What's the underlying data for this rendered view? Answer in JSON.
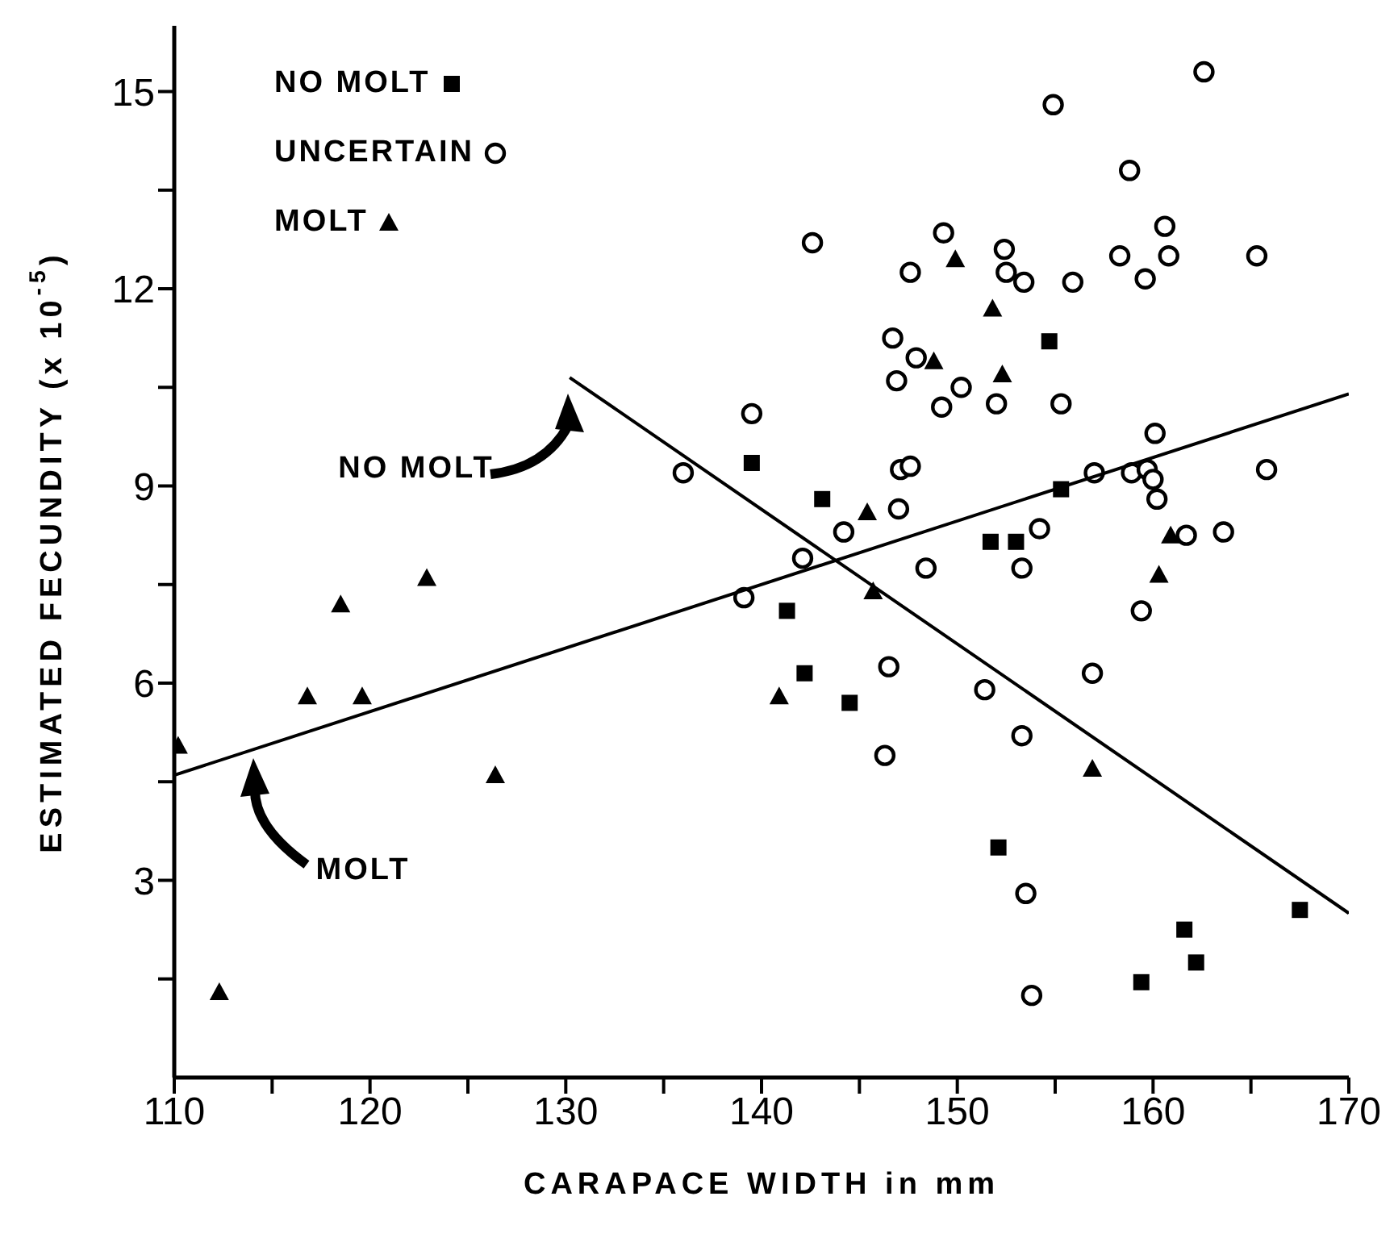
{
  "chart_data": {
    "type": "scatter",
    "xlabel": "CARAPACE WIDTH in mm",
    "ylabel": "ESTIMATED FECUNDITY (x 10$^{-5}$)",
    "xlim": [
      110,
      170
    ],
    "xticks": [
      110,
      {
        "value": 115,
        "label": null
      },
      120,
      {
        "value": 125,
        "label": null
      },
      130,
      {
        "value": 135,
        "label": null
      },
      140,
      {
        "value": 145,
        "label": null
      },
      150,
      {
        "value": 155,
        "label": null
      },
      160,
      {
        "value": 165,
        "label": null
      },
      170
    ],
    "ylim": [
      0,
      16
    ],
    "yticks": [
      {
        "value": 1.5,
        "label": null
      },
      3,
      {
        "value": 4.5,
        "label": null
      },
      6,
      {
        "value": 7.5,
        "label": null
      },
      9,
      {
        "value": 10.5,
        "label": null
      },
      12,
      {
        "value": 13.5,
        "label": null
      },
      15
    ],
    "legend": "top left",
    "series": [
      {
        "name": "NO MOLT",
        "color": "#000000",
        "marker": "square",
        "x": [
          139.5,
          143.1,
          155.3,
          154.7,
          151.7,
          153.0,
          141.3,
          142.2,
          144.5,
          152.1,
          159.4,
          161.6,
          162.2,
          167.5
        ],
        "values": [
          9.35,
          8.8,
          8.95,
          11.2,
          8.15,
          8.15,
          7.1,
          6.15,
          5.7,
          3.5,
          1.45,
          2.25,
          1.75,
          2.55
        ]
      },
      {
        "name": "UNCERTAIN",
        "color": "#000000",
        "marker": "circle",
        "x": [
          162.6,
          154.9,
          158.8,
          142.6,
          149.3,
          152.4,
          147.6,
          152.5,
          153.4,
          155.9,
          158.3,
          160.6,
          160.8,
          159.6,
          165.3,
          146.7,
          147.9,
          146.9,
          150.2,
          149.2,
          152.0,
          155.3,
          139.5,
          160.1,
          147.1,
          147.6,
          157.0,
          158.9,
          159.7,
          160.0,
          160.2,
          165.8,
          147.0,
          144.2,
          154.2,
          161.7,
          163.6,
          142.1,
          136.0,
          139.1,
          148.4,
          153.3,
          159.4,
          146.5,
          156.9,
          151.4,
          153.3,
          146.3,
          153.5,
          153.8
        ],
        "values": [
          15.3,
          14.8,
          13.8,
          12.7,
          12.85,
          12.6,
          12.25,
          12.25,
          12.1,
          12.1,
          12.5,
          12.95,
          12.5,
          12.15,
          12.5,
          11.25,
          10.95,
          10.6,
          10.5,
          10.2,
          10.25,
          10.25,
          10.1,
          9.8,
          9.25,
          9.3,
          9.2,
          9.2,
          9.25,
          9.1,
          8.8,
          9.25,
          8.65,
          8.3,
          8.35,
          8.25,
          8.3,
          7.9,
          9.2,
          7.3,
          7.75,
          7.75,
          7.1,
          6.25,
          6.15,
          5.9,
          5.2,
          4.9,
          2.8,
          1.25
        ]
      },
      {
        "name": "MOLT",
        "color": "#000000",
        "marker": "triangle",
        "x": [
          110.2,
          112.3,
          116.8,
          118.5,
          119.6,
          122.9,
          126.4,
          140.9,
          145.4,
          145.7,
          148.8,
          149.9,
          151.8,
          152.3,
          156.9,
          160.3,
          160.9
        ],
        "values": [
          5.05,
          1.3,
          5.8,
          7.2,
          5.8,
          7.6,
          4.6,
          5.8,
          8.6,
          7.4,
          10.9,
          12.45,
          11.7,
          10.7,
          4.7,
          7.65,
          8.25
        ]
      },
      {
        "type": "line",
        "color": "#000000",
        "x": [
          130.2,
          170
        ],
        "values": [
          10.65,
          2.5
        ]
      },
      {
        "type": "line",
        "color": "#000000",
        "x": [
          110,
          170
        ],
        "values": [
          4.6,
          10.4
        ]
      }
    ],
    "annotations": [
      "NO MOLT",
      "MOLT"
    ]
  }
}
